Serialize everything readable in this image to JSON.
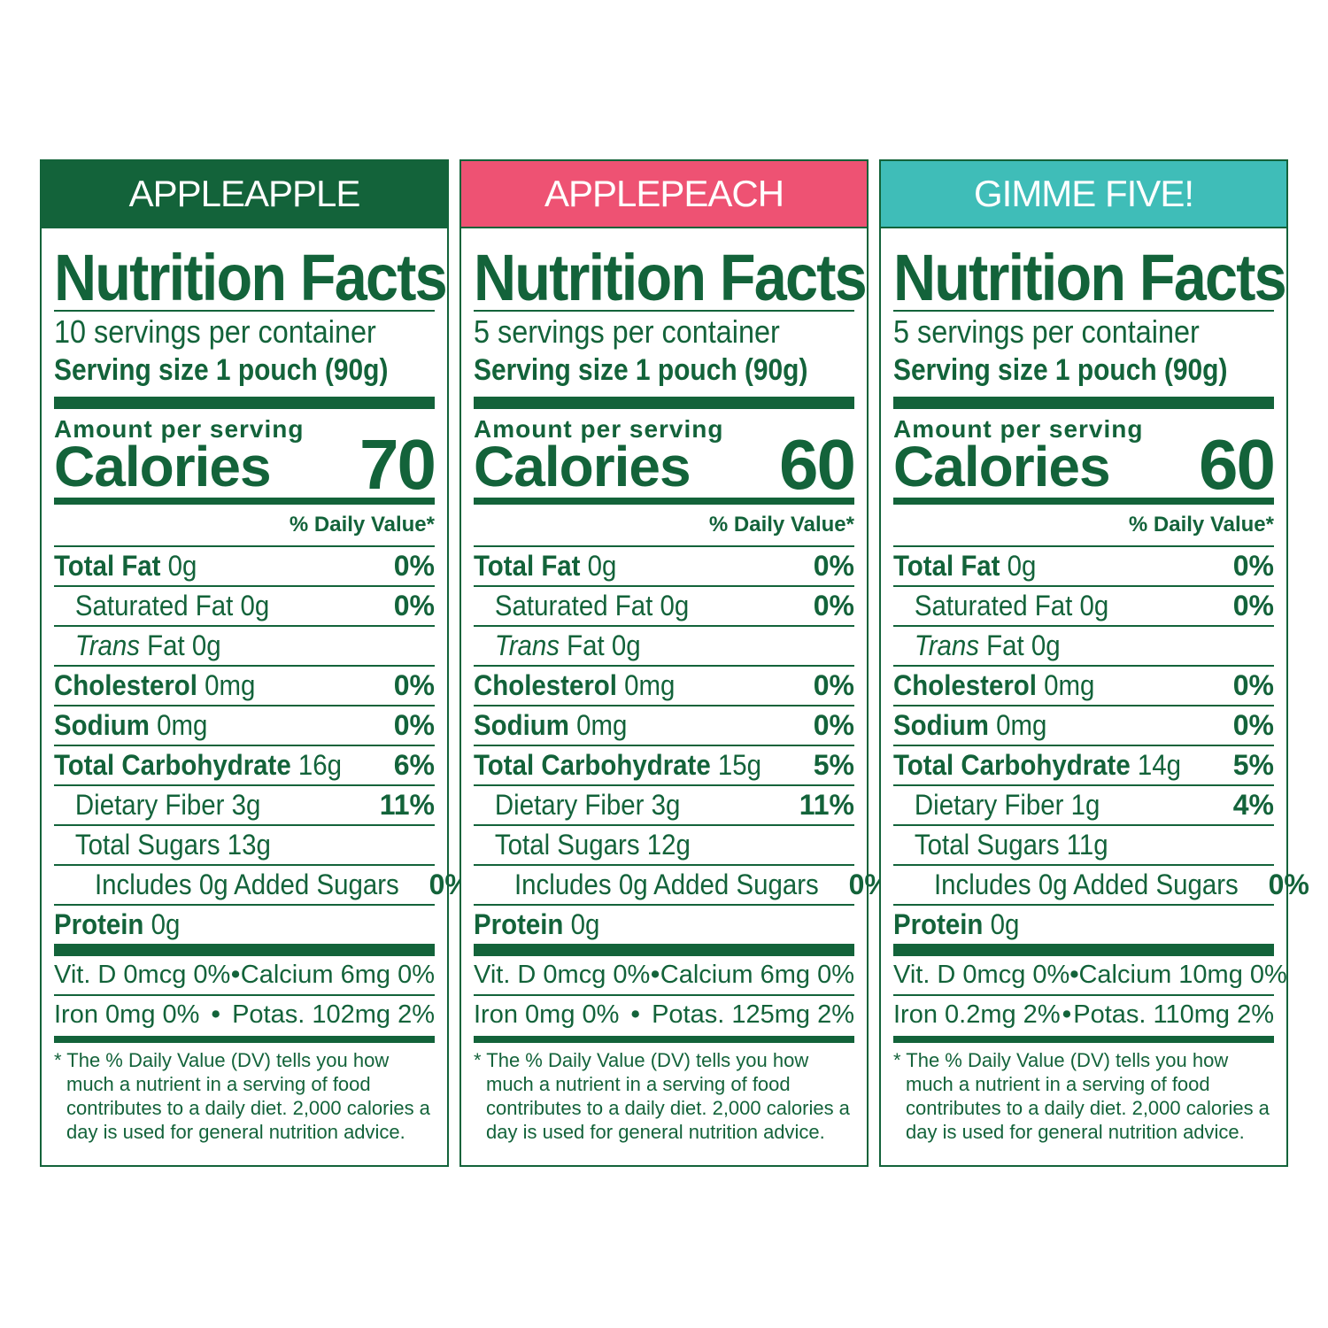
{
  "colors": {
    "green": "#13633a",
    "apple_banner": "#13633a",
    "peach_banner": "#ee5273",
    "gimme_banner": "#3fbdb8"
  },
  "panels": [
    {
      "banner": "APPLEAPPLE",
      "title": "Nutrition Facts",
      "servings": "10 servings per container",
      "serving_size": "Serving size 1 pouch (90g)",
      "amount": "Amount per serving",
      "calories_label": "Calories",
      "calories": "70",
      "dv_header": "% Daily Value*",
      "total_fat": "Total Fat",
      "total_fat_val": "0g",
      "total_fat_pct": "0%",
      "sat_fat": "Saturated Fat 0g",
      "sat_fat_pct": "0%",
      "trans": "Trans",
      "trans_rest": "Fat 0g",
      "cholesterol": "Cholesterol",
      "cholesterol_val": "0mg",
      "cholesterol_pct": "0%",
      "sodium": "Sodium",
      "sodium_val": "0mg",
      "sodium_pct": "0%",
      "carb": "Total Carbohydrate",
      "carb_val": "16g",
      "carb_pct": "6%",
      "fiber": "Dietary Fiber 3g",
      "fiber_pct": "11%",
      "sugars": "Total Sugars 13g",
      "added": "Includes 0g Added Sugars",
      "added_pct": "0%",
      "protein": "Protein",
      "protein_val": "0g",
      "vit_d": "Vit. D 0mcg 0%",
      "calcium": "Calcium 6mg 0%",
      "iron": "Iron 0mg 0%",
      "potas": "Potas. 102mg 2%",
      "bullet": "•",
      "footnote": "* The % Daily Value (DV) tells you how much a nutrient in a serving of food contributes to a daily diet. 2,000 calories a day is used for general nutrition advice."
    },
    {
      "banner": "APPLEPEACH",
      "title": "Nutrition Facts",
      "servings": "5 servings per container",
      "serving_size": "Serving size 1 pouch (90g)",
      "amount": "Amount per serving",
      "calories_label": "Calories",
      "calories": "60",
      "dv_header": "% Daily Value*",
      "total_fat": "Total Fat",
      "total_fat_val": "0g",
      "total_fat_pct": "0%",
      "sat_fat": "Saturated Fat 0g",
      "sat_fat_pct": "0%",
      "trans": "Trans",
      "trans_rest": "Fat 0g",
      "cholesterol": "Cholesterol",
      "cholesterol_val": "0mg",
      "cholesterol_pct": "0%",
      "sodium": "Sodium",
      "sodium_val": "0mg",
      "sodium_pct": "0%",
      "carb": "Total Carbohydrate",
      "carb_val": "15g",
      "carb_pct": "5%",
      "fiber": "Dietary Fiber 3g",
      "fiber_pct": "11%",
      "sugars": "Total Sugars 12g",
      "added": "Includes 0g Added Sugars",
      "added_pct": "0%",
      "protein": "Protein",
      "protein_val": "0g",
      "vit_d": "Vit. D 0mcg 0%",
      "calcium": "Calcium 6mg 0%",
      "iron": "Iron 0mg 0%",
      "potas": "Potas. 125mg 2%",
      "bullet": "•",
      "footnote": "* The % Daily Value (DV) tells you how much a nutrient in a serving of food contributes to a daily diet. 2,000 calories a day is used for general nutrition advice."
    },
    {
      "banner": "GIMME FIVE!",
      "title": "Nutrition Facts",
      "servings": "5 servings per container",
      "serving_size": "Serving size 1 pouch (90g)",
      "amount": "Amount per serving",
      "calories_label": "Calories",
      "calories": "60",
      "dv_header": "% Daily Value*",
      "total_fat": "Total Fat",
      "total_fat_val": "0g",
      "total_fat_pct": "0%",
      "sat_fat": "Saturated Fat 0g",
      "sat_fat_pct": "0%",
      "trans": "Trans",
      "trans_rest": "Fat 0g",
      "cholesterol": "Cholesterol",
      "cholesterol_val": "0mg",
      "cholesterol_pct": "0%",
      "sodium": "Sodium",
      "sodium_val": "0mg",
      "sodium_pct": "0%",
      "carb": "Total Carbohydrate",
      "carb_val": "14g",
      "carb_pct": "5%",
      "fiber": "Dietary Fiber 1g",
      "fiber_pct": "4%",
      "sugars": "Total Sugars 11g",
      "added": "Includes 0g Added Sugars",
      "added_pct": "0%",
      "protein": "Protein",
      "protein_val": "0g",
      "vit_d": "Vit. D 0mcg 0%",
      "calcium": "Calcium 10mg 0%",
      "iron": "Iron 0.2mg 2%",
      "potas": "Potas. 110mg 2%",
      "bullet": "•",
      "footnote": "* The % Daily Value (DV) tells you how much a nutrient in a serving of food contributes to a daily diet. 2,000 calories a day is used for general nutrition advice."
    }
  ]
}
